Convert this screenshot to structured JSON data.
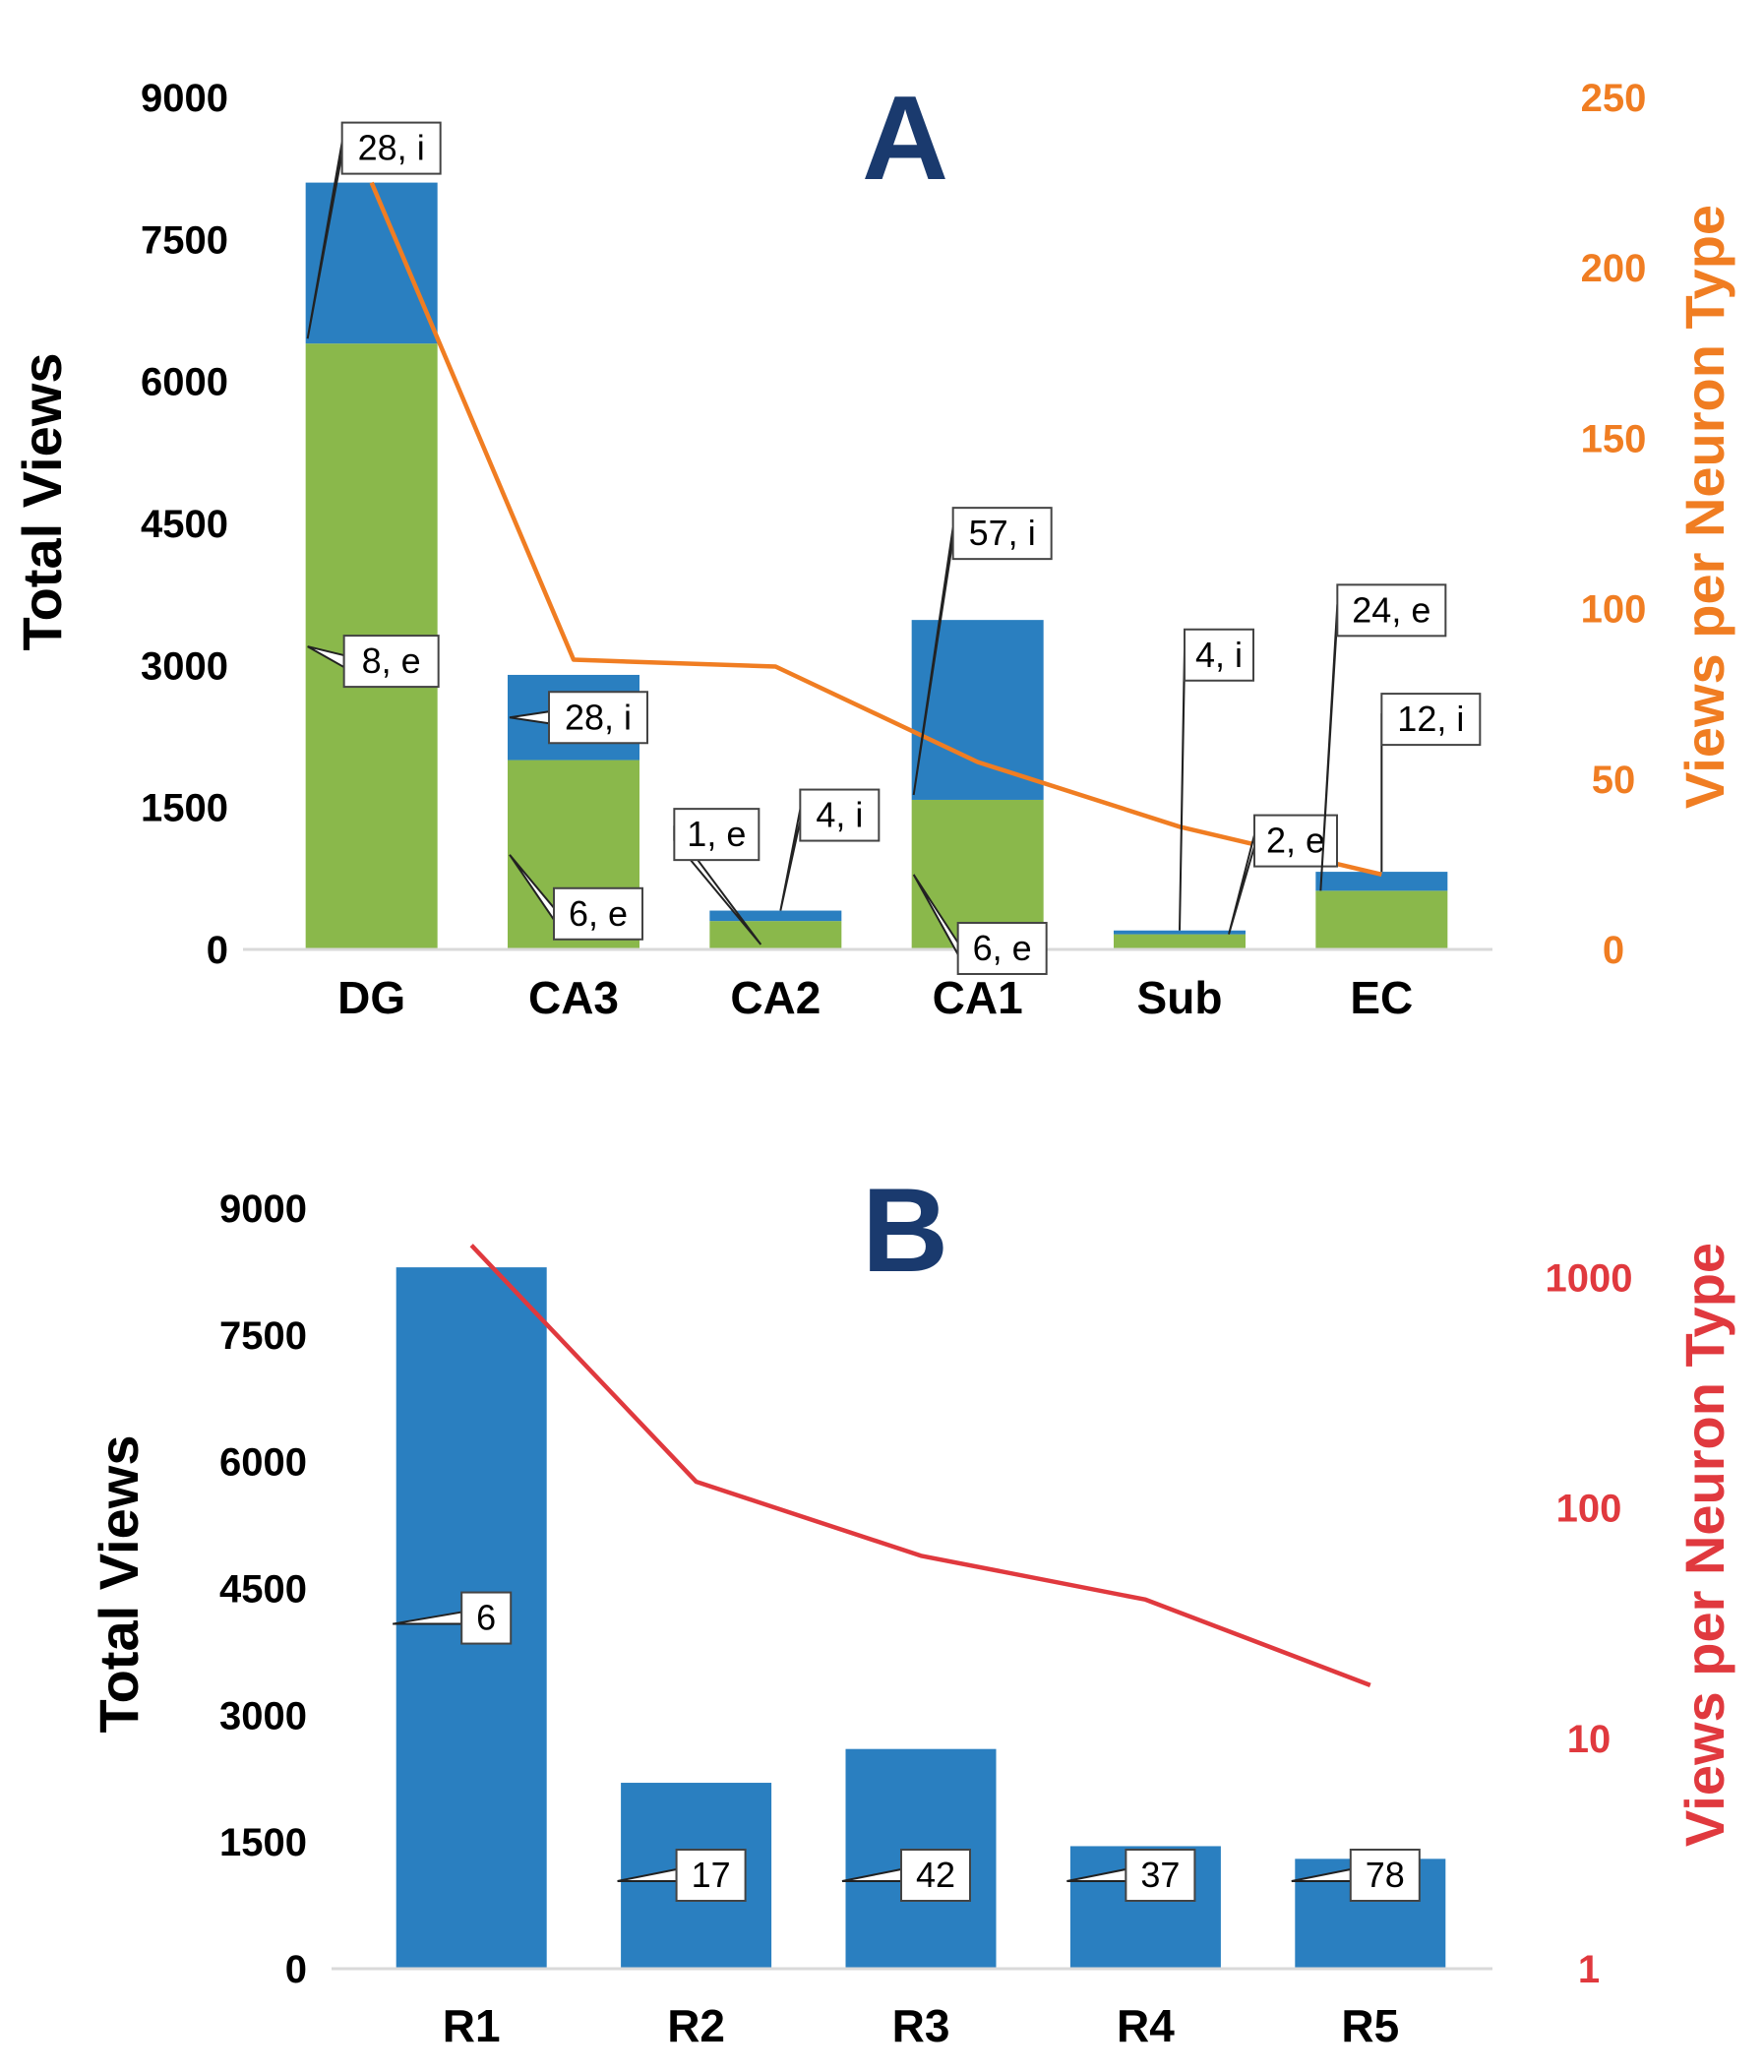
{
  "chart_data": [
    {
      "panel": "A",
      "type": "bar",
      "stacked": true,
      "title": "A",
      "categories": [
        "DG",
        "CA3",
        "CA2",
        "CA1",
        "Sub",
        "EC"
      ],
      "ylabel": "Total Views",
      "y2label": "Views per Neuron Type",
      "ylim": [
        0,
        9000
      ],
      "y2lim": [
        0,
        250
      ],
      "yticks": [
        "0",
        "1500",
        "3000",
        "4500",
        "6000",
        "7500",
        "9000"
      ],
      "y2ticks": [
        "0",
        "50",
        "100",
        "150",
        "200",
        "250"
      ],
      "grid": false,
      "series": [
        {
          "name": "e",
          "kind": "bar",
          "color": "#8ab84b",
          "values": [
            6400,
            2000,
            300,
            1580,
            160,
            620
          ]
        },
        {
          "name": "i",
          "kind": "bar",
          "color": "#2a7fc0",
          "values": [
            1700,
            900,
            110,
            1900,
            40,
            200
          ]
        },
        {
          "name": "",
          "kind": "line",
          "axis": "y2",
          "color": "#f07d22",
          "values": [
            225,
            85,
            83,
            55,
            36,
            22
          ]
        }
      ],
      "callouts": [
        {
          "text": "8, e",
          "category": "DG",
          "series": "e"
        },
        {
          "text": "28, i",
          "category": "DG",
          "series": "i"
        },
        {
          "text": "6, e",
          "category": "CA3",
          "series": "e"
        },
        {
          "text": "28, i",
          "category": "CA3",
          "series": "i"
        },
        {
          "text": "1, e",
          "category": "CA2",
          "series": "e"
        },
        {
          "text": "4, i",
          "category": "CA2",
          "series": "i"
        },
        {
          "text": "6, e",
          "category": "CA1",
          "series": "e"
        },
        {
          "text": "57, i",
          "category": "CA1",
          "series": "i"
        },
        {
          "text": "4, i",
          "category": "Sub",
          "series": "i"
        },
        {
          "text": "2, e",
          "category": "Sub",
          "series": "e"
        },
        {
          "text": "24, e",
          "category": "EC",
          "series": "e"
        },
        {
          "text": "12, i",
          "category": "EC",
          "series": "i"
        }
      ],
      "colors": {
        "axis_left": "#000000",
        "axis_right": "#f07d22",
        "title": "#1a3a6e"
      }
    },
    {
      "panel": "B",
      "type": "bar",
      "title": "B",
      "categories": [
        "R1",
        "R2",
        "R3",
        "R4",
        "R5"
      ],
      "ylabel": "Total Views",
      "y2label": "Views per Neuron Type",
      "ylim": [
        0,
        9000
      ],
      "y2lim": [
        1,
        2000
      ],
      "y2scale": "log",
      "yticks": [
        "0",
        "1500",
        "3000",
        "4500",
        "6000",
        "7500",
        "9000"
      ],
      "y2ticks": [
        "1",
        "10",
        "100",
        "1000"
      ],
      "grid": false,
      "series": [
        {
          "name": "",
          "kind": "bar",
          "color": "#2a7fc0",
          "values": [
            8300,
            2200,
            2600,
            1450,
            1300
          ]
        },
        {
          "name": "",
          "kind": "line",
          "axis": "y2",
          "color": "#e0393e",
          "values": [
            1380,
            130,
            62,
            40,
            17
          ]
        }
      ],
      "callouts": [
        {
          "text": "6",
          "category": "R1"
        },
        {
          "text": "17",
          "category": "R2"
        },
        {
          "text": "42",
          "category": "R3"
        },
        {
          "text": "37",
          "category": "R4"
        },
        {
          "text": "78",
          "category": "R5"
        }
      ],
      "colors": {
        "axis_left": "#000000",
        "axis_right": "#e0393e",
        "title": "#1a3a6e"
      }
    }
  ]
}
